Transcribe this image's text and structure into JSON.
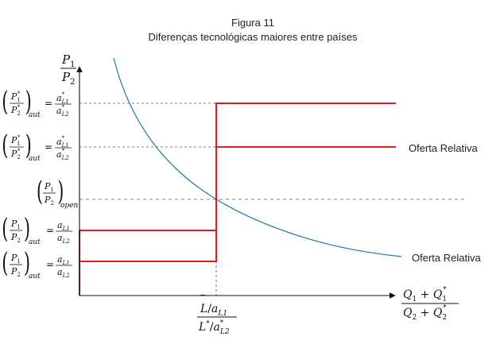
{
  "figure": {
    "title": "Figura 11",
    "subtitle": "Diferenças tecnológicas maiores entre países"
  },
  "labels": {
    "upper_supply": "Oferta Relativa",
    "lower_supply": "Oferta Relativa"
  },
  "axes": {
    "y_axis_label": {
      "num_base": "P",
      "num_sub": "1",
      "den_base": "P",
      "den_sub": "2"
    },
    "x_axis_label": {
      "numerator": {
        "a": "Q",
        "a_sub": "1",
        "plus": " + ",
        "b": "Q",
        "b_sub": "1",
        "b_sup": "*"
      },
      "denominator": {
        "a": "Q",
        "a_sub": "2",
        "plus": " + ",
        "b": "Q",
        "b_sub": "2",
        "b_sup": "*"
      }
    },
    "x_tick": {
      "num": {
        "base": "L",
        "bar": "‾",
        "slash": "/",
        "a": "a",
        "a_sub": "L1"
      },
      "den": {
        "base": "L",
        "sup": "*",
        "slash": "/",
        "a": "a",
        "a_sub": "L2",
        "a_sup": "*"
      }
    }
  },
  "ticks": {
    "t1": {
      "lhs_num": "P",
      "lhs_num_sub": "1",
      "lhs_num_sup": "*",
      "lhs_den": "P",
      "lhs_den_sub": "2",
      "lhs_den_sup": "*",
      "tag": "aut",
      "eq": "=",
      "rhs_num": "a",
      "rhs_num_sub": "L1",
      "rhs_num_sup": "*",
      "rhs_den": "a",
      "rhs_den_sub": "L2",
      "rhs_den_sup": "*"
    },
    "t2": {
      "lhs_num": "P",
      "lhs_num_sub": "1",
      "lhs_num_sup": "*",
      "lhs_den": "P",
      "lhs_den_sub": "2",
      "lhs_den_sup": "*",
      "tag": "aut",
      "eq": "=",
      "rhs_num": "a",
      "rhs_num_sub": "L1",
      "rhs_num_sup": "*",
      "rhs_den": "a",
      "rhs_den_sub": "L2",
      "rhs_den_sup": "*"
    },
    "t3": {
      "lhs_num": "P",
      "lhs_num_sub": "1",
      "lhs_den": "P",
      "lhs_den_sub": "2",
      "tag": "open"
    },
    "t4": {
      "lhs_num": "P",
      "lhs_num_sub": "1",
      "lhs_den": "P",
      "lhs_den_sub": "2",
      "tag": "aut",
      "eq": "=",
      "rhs_num": "a",
      "rhs_num_sub": "L1",
      "rhs_den": "a",
      "rhs_den_sub": "L2"
    },
    "t5": {
      "lhs_num": "P",
      "lhs_num_sub": "1",
      "lhs_den": "P",
      "lhs_den_sub": "2",
      "tag": "aut",
      "eq": "=",
      "rhs_num": "a",
      "rhs_num_sub": "L1",
      "rhs_den": "a",
      "rhs_den_sub": "L2"
    }
  },
  "colors": {
    "supply": "#e41a1c",
    "demand": "#1f78b4",
    "axis": "#111111",
    "guide": "#555555"
  }
}
